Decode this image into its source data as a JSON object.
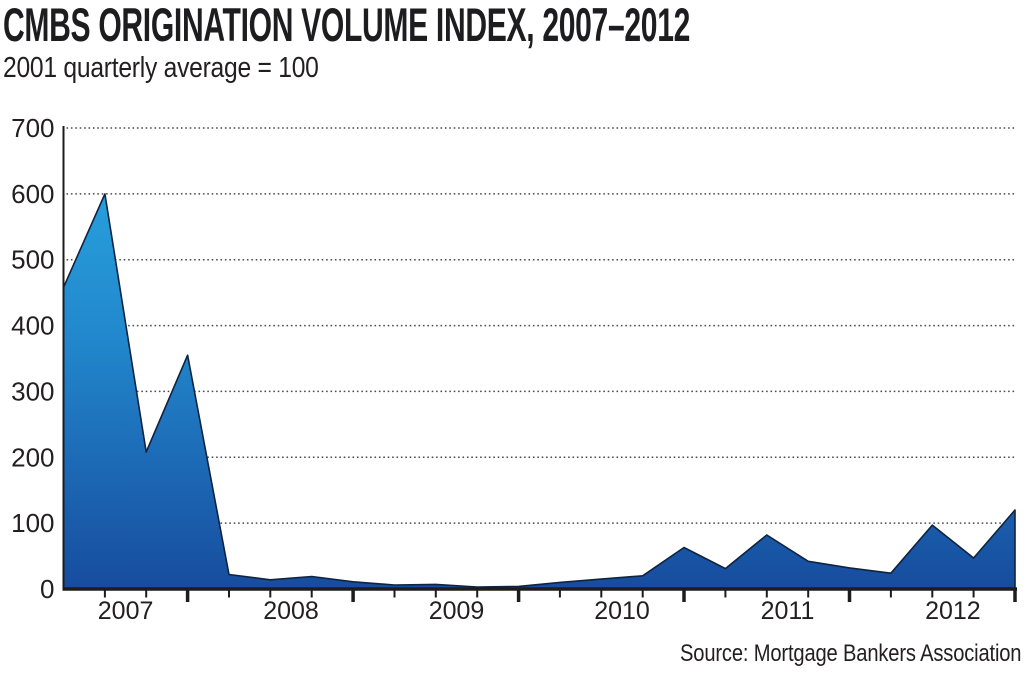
{
  "header": {
    "title": "CMBS ORIGINATION VOLUME INDEX, 2007–2012",
    "subtitle": "2001 quarterly average = 100"
  },
  "footer": {
    "source": "Source: Mortgage Bankers Association"
  },
  "chart_data": {
    "type": "area",
    "title": "CMBS ORIGINATION VOLUME INDEX, 2007–2012",
    "subtitle": "2001 quarterly average = 100",
    "source": "Source: Mortgage Bankers Association",
    "xlabel": "",
    "ylabel": "",
    "categories": [
      "2007 Q1",
      "2007 Q2",
      "2007 Q3",
      "2007 Q4",
      "2008 Q1",
      "2008 Q2",
      "2008 Q3",
      "2008 Q4",
      "2009 Q1",
      "2009 Q2",
      "2009 Q3",
      "2009 Q4",
      "2010 Q1",
      "2010 Q2",
      "2010 Q3",
      "2010 Q4",
      "2011 Q1",
      "2011 Q2",
      "2011 Q3",
      "2011 Q4",
      "2012 Q1",
      "2012 Q2",
      "2012 Q3",
      "2012 Q4"
    ],
    "values": [
      458,
      600,
      208,
      355,
      22,
      14,
      19,
      11,
      6,
      7,
      3,
      4,
      10,
      15,
      20,
      63,
      31,
      82,
      42,
      32,
      24,
      97,
      47,
      120
    ],
    "year_labels": [
      "2007",
      "2008",
      "2009",
      "2010",
      "2011",
      "2012"
    ],
    "y_ticks": [
      0,
      100,
      200,
      300,
      400,
      500,
      600,
      700
    ],
    "ylim": [
      0,
      700
    ],
    "grid": "horizontal-dotted",
    "legend_position": "none",
    "colors": {
      "area_top": "#29A9E2",
      "area_mid": "#2288CD",
      "area_bottom": "#174C9E",
      "outline": "#10233F",
      "axis": "#1d1d1f",
      "grid": "#4b4b4b",
      "text": "#231F20"
    }
  }
}
